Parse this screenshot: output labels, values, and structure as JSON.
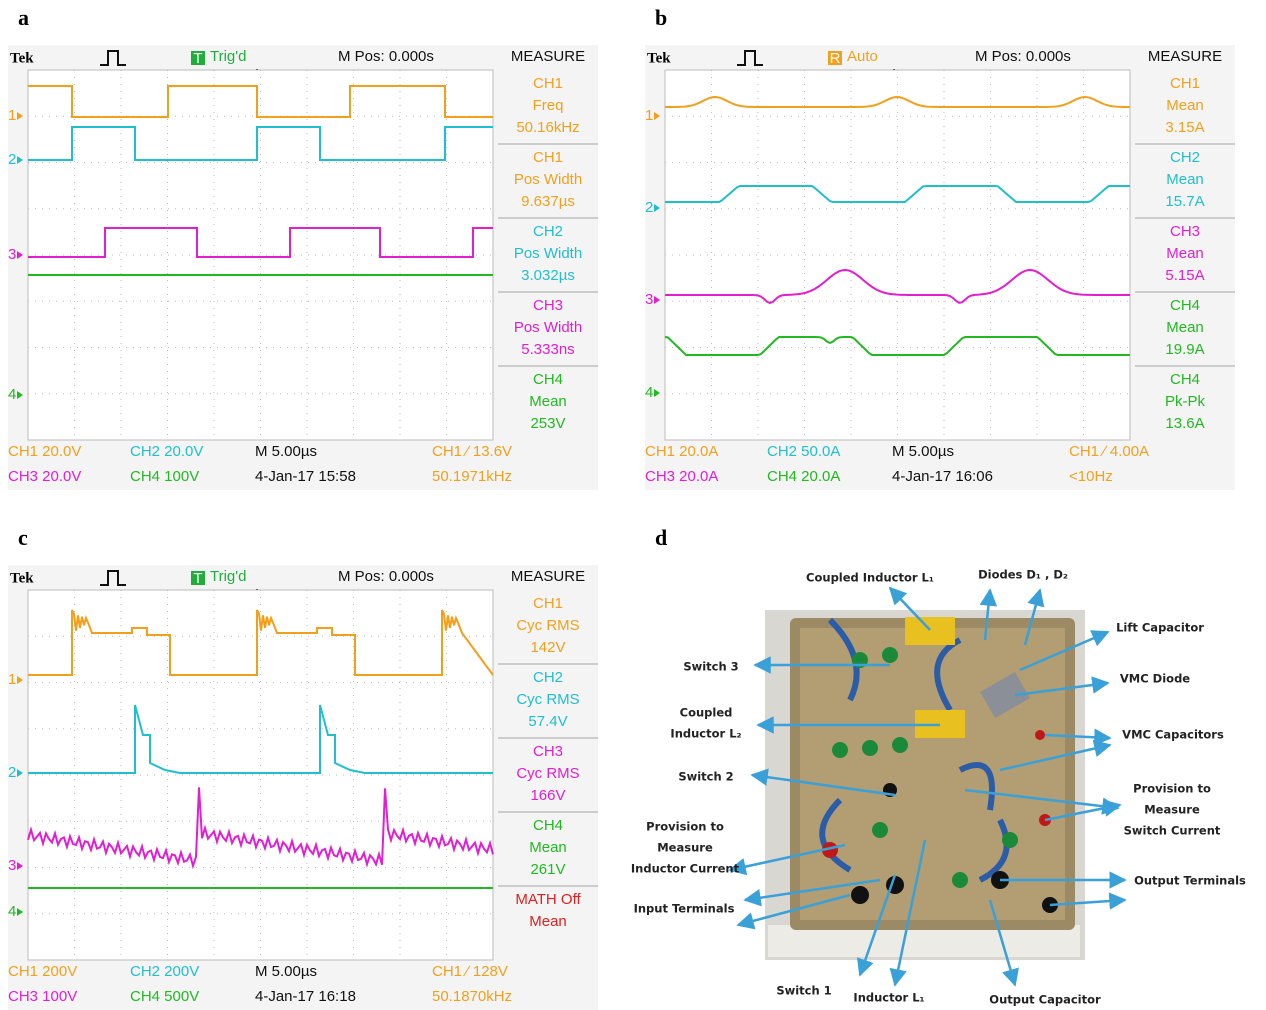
{
  "panels": [
    {
      "label": "a",
      "brand": "Tek",
      "trigger_state": {
        "icon": "T",
        "text": "Trig'd",
        "color": "#1fae3a"
      },
      "position": "M Pos: 0.000s",
      "measure_title": "MEASURE",
      "channel_markers": [
        {
          "text": "1",
          "color": "#f2a01c"
        },
        {
          "text": "2",
          "color": "#1fbfcf"
        },
        {
          "text": "3",
          "color": "#e01fd0"
        },
        {
          "text": "4",
          "color": "#22b822"
        }
      ],
      "measures": [
        {
          "lines": [
            "CH1",
            "Freq",
            "50.16kHz"
          ],
          "color": "#f2a01c"
        },
        {
          "lines": [
            "CH1",
            "Pos Width",
            "9.637µs"
          ],
          "color": "#f2a01c"
        },
        {
          "lines": [
            "CH2",
            "Pos Width",
            "3.032µs"
          ],
          "color": "#1fbfcf"
        },
        {
          "lines": [
            "CH3",
            "Pos Width",
            "5.333ns"
          ],
          "color": "#e01fd0"
        },
        {
          "lines": [
            "CH4",
            "Mean",
            "253V"
          ],
          "color": "#22b822"
        }
      ],
      "footer": [
        [
          {
            "text": "CH1 20.0V",
            "color": "#f2a01c"
          },
          {
            "text": "CH2 20.0V",
            "color": "#1fbfcf"
          },
          {
            "text": "M 5.00µs",
            "color": "#111111"
          },
          {
            "text": "CH1 ∕ 13.6V",
            "color": "#f2a01c"
          }
        ],
        [
          {
            "text": "CH3 20.0V",
            "color": "#e01fd0"
          },
          {
            "text": "CH4 100V",
            "color": "#22b822"
          },
          {
            "text": "4-Jan-17 15:58",
            "color": "#111111"
          },
          {
            "text": "50.1971kHz",
            "color": "#f2a01c"
          }
        ]
      ]
    },
    {
      "label": "b",
      "brand": "Tek",
      "trigger_state": {
        "icon": "R",
        "text": "Auto",
        "color": "#f2a01c"
      },
      "position": "M Pos: 0.000s",
      "measure_title": "MEASURE",
      "channel_markers": [
        {
          "text": "1",
          "color": "#f2a01c"
        },
        {
          "text": "2",
          "color": "#1fbfcf"
        },
        {
          "text": "3",
          "color": "#e01fd0"
        },
        {
          "text": "4",
          "color": "#22b822"
        }
      ],
      "measures": [
        {
          "lines": [
            "CH1",
            "Mean",
            "3.15A"
          ],
          "color": "#f2a01c"
        },
        {
          "lines": [
            "CH2",
            "Mean",
            "15.7A"
          ],
          "color": "#1fbfcf"
        },
        {
          "lines": [
            "CH3",
            "Mean",
            "5.15A"
          ],
          "color": "#e01fd0"
        },
        {
          "lines": [
            "CH4",
            "Mean",
            "19.9A"
          ],
          "color": "#22b822"
        },
        {
          "lines": [
            "CH4",
            "Pk-Pk",
            "13.6A"
          ],
          "color": "#22b822"
        }
      ],
      "footer": [
        [
          {
            "text": "CH1 20.0A",
            "color": "#f2a01c"
          },
          {
            "text": "CH2 50.0A",
            "color": "#1fbfcf"
          },
          {
            "text": "M 5.00µs",
            "color": "#111111"
          },
          {
            "text": "CH1 ∕ 4.00A",
            "color": "#f2a01c"
          }
        ],
        [
          {
            "text": "CH3 20.0A",
            "color": "#e01fd0"
          },
          {
            "text": "CH4 20.0A",
            "color": "#22b822"
          },
          {
            "text": "4-Jan-17 16:06",
            "color": "#111111"
          },
          {
            "text": "<10Hz",
            "color": "#f2a01c"
          }
        ]
      ]
    },
    {
      "label": "c",
      "brand": "Tek",
      "trigger_state": {
        "icon": "T",
        "text": "Trig'd",
        "color": "#1fae3a"
      },
      "position": "M Pos: 0.000s",
      "measure_title": "MEASURE",
      "channel_markers": [
        {
          "text": "1",
          "color": "#f2a01c"
        },
        {
          "text": "2",
          "color": "#1fbfcf"
        },
        {
          "text": "3",
          "color": "#e01fd0"
        },
        {
          "text": "4",
          "color": "#22b822"
        }
      ],
      "measures": [
        {
          "lines": [
            "CH1",
            "Cyc RMS",
            "142V"
          ],
          "color": "#f2a01c"
        },
        {
          "lines": [
            "CH2",
            "Cyc RMS",
            "57.4V"
          ],
          "color": "#1fbfcf"
        },
        {
          "lines": [
            "CH3",
            "Cyc RMS",
            "166V"
          ],
          "color": "#e01fd0"
        },
        {
          "lines": [
            "CH4",
            "Mean",
            "261V"
          ],
          "color": "#22b822"
        },
        {
          "lines": [
            "MATH Off",
            "Mean"
          ],
          "color": "#e02020"
        }
      ],
      "footer": [
        [
          {
            "text": "CH1 200V",
            "color": "#f2a01c"
          },
          {
            "text": "CH2 200V",
            "color": "#1fbfcf"
          },
          {
            "text": "M 5.00µs",
            "color": "#111111"
          },
          {
            "text": "CH1 ∕ 128V",
            "color": "#f2a01c"
          }
        ],
        [
          {
            "text": "CH3 100V",
            "color": "#e01fd0"
          },
          {
            "text": "CH4 500V",
            "color": "#22b822"
          },
          {
            "text": "4-Jan-17 16:18",
            "color": "#111111"
          },
          {
            "text": "50.1870kHz",
            "color": "#f2a01c"
          }
        ]
      ]
    },
    {
      "label": "d",
      "callouts": [
        {
          "lines": [
            "Coupled Inductor L₁"
          ]
        },
        {
          "lines": [
            "Diodes D₁ , D₂"
          ]
        },
        {
          "lines": [
            "Lift Capacitor"
          ]
        },
        {
          "lines": [
            "Switch 3"
          ]
        },
        {
          "lines": [
            "VMC Diode"
          ]
        },
        {
          "lines": [
            "Coupled",
            "Inductor L₂"
          ]
        },
        {
          "lines": [
            "VMC Capacitors"
          ]
        },
        {
          "lines": [
            "Switch 2"
          ]
        },
        {
          "lines": [
            "Provision to",
            "Measure",
            "Switch Current"
          ]
        },
        {
          "lines": [
            "Provision to",
            "Measure",
            "Inductor Current"
          ]
        },
        {
          "lines": [
            "Output Terminals"
          ]
        },
        {
          "lines": [
            "Input Terminals"
          ]
        },
        {
          "lines": [
            "Switch 1"
          ]
        },
        {
          "lines": [
            "Inductor L₁"
          ]
        },
        {
          "lines": [
            "Output Capacitor"
          ]
        }
      ]
    }
  ]
}
